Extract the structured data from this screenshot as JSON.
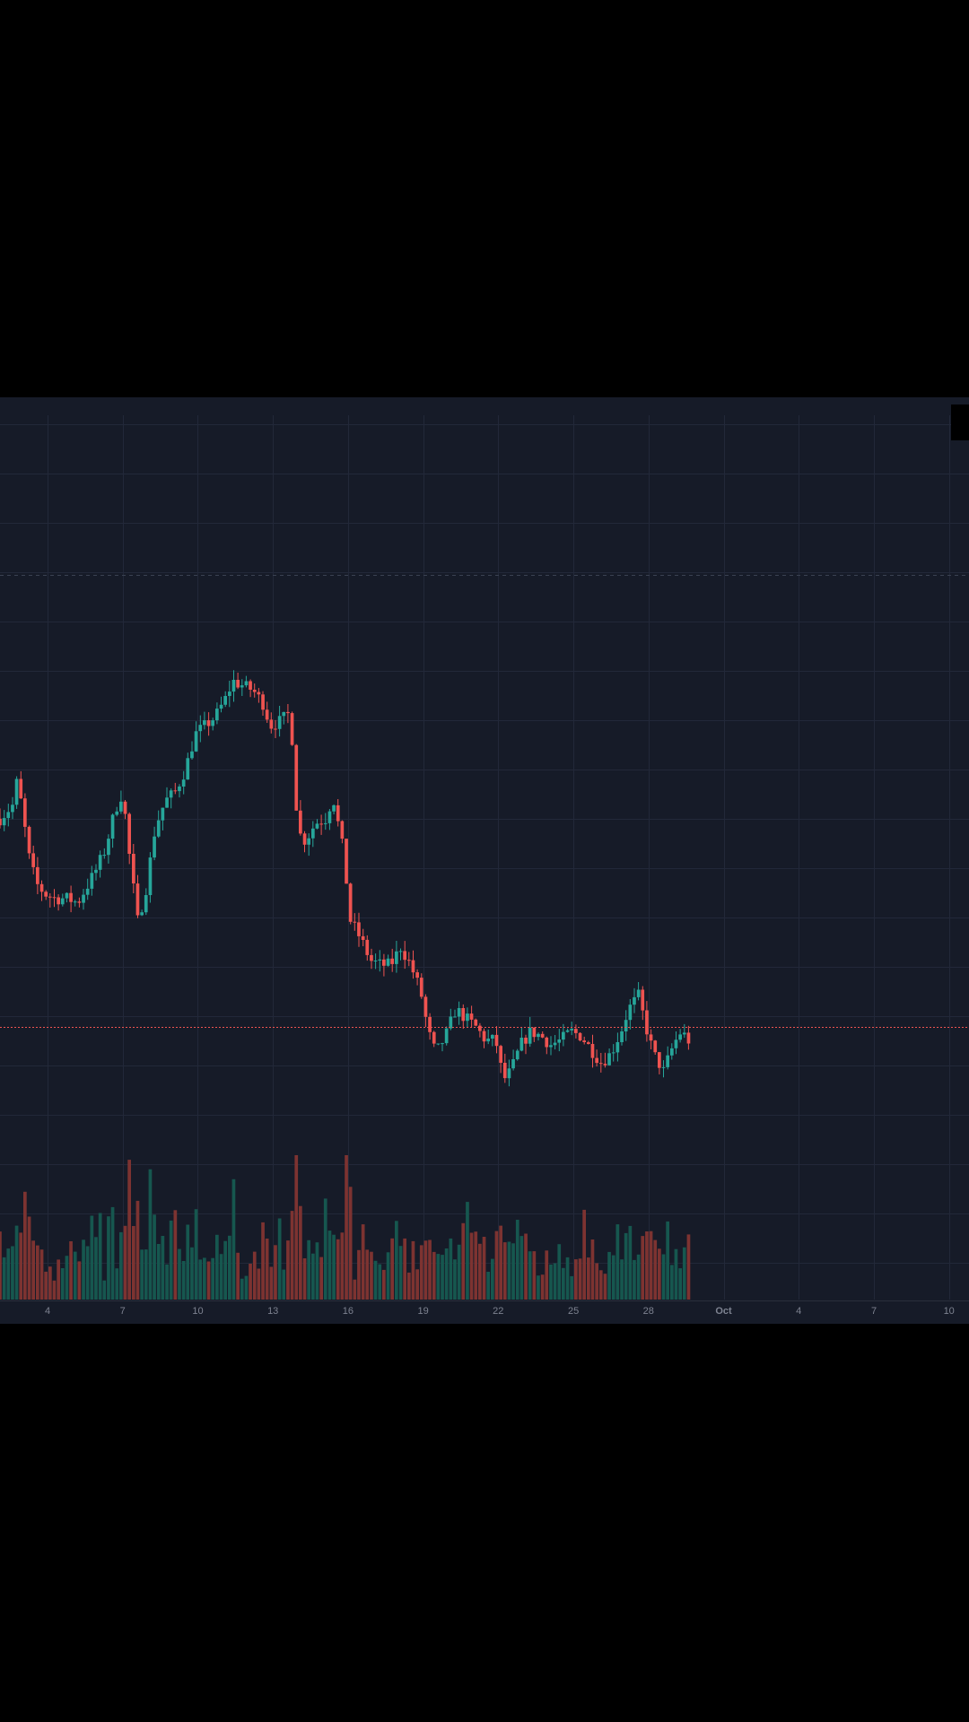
{
  "colors": {
    "background": "#000000",
    "chart_background": "#161b28",
    "grid": "#222839",
    "up": "#26a69a",
    "down": "#ef5350",
    "volume_up": "#16574f",
    "volume_down": "#7d3331",
    "last_price_line": "#ef5350",
    "dashed_line": "#3b4252",
    "axis_text": "#7d8290"
  },
  "chart_data": {
    "type": "candlestick",
    "title": "",
    "price_scale_labels": false,
    "x_axis_ticks": [
      {
        "label": "4",
        "day": 4
      },
      {
        "label": "7",
        "day": 7
      },
      {
        "label": "10",
        "day": 10
      },
      {
        "label": "13",
        "day": 13
      },
      {
        "label": "16",
        "day": 16
      },
      {
        "label": "19",
        "day": 19
      },
      {
        "label": "22",
        "day": 22
      },
      {
        "label": "25",
        "day": 25
      },
      {
        "label": "28",
        "day": 28
      },
      {
        "label": "Oct",
        "day": 31,
        "bold": true
      },
      {
        "label": "4",
        "day": 34
      },
      {
        "label": "7",
        "day": 37
      },
      {
        "label": "10",
        "day": 40
      }
    ],
    "x_range_days": [
      2.1,
      40.8
    ],
    "close_path": [
      [
        2.1,
        57
      ],
      [
        2.6,
        60
      ],
      [
        2.8,
        66
      ],
      [
        3.3,
        47
      ],
      [
        3.6,
        42
      ],
      [
        3.9,
        40
      ],
      [
        4.3,
        39
      ],
      [
        4.8,
        39
      ],
      [
        5.2,
        38
      ],
      [
        5.6,
        42
      ],
      [
        5.9,
        45
      ],
      [
        6.3,
        50
      ],
      [
        6.7,
        59
      ],
      [
        7.0,
        63
      ],
      [
        7.3,
        47
      ],
      [
        7.6,
        34
      ],
      [
        7.9,
        40
      ],
      [
        8.3,
        55
      ],
      [
        8.7,
        61
      ],
      [
        9.1,
        63
      ],
      [
        9.5,
        68
      ],
      [
        9.9,
        76
      ],
      [
        10.3,
        78
      ],
      [
        10.7,
        80
      ],
      [
        11.1,
        84
      ],
      [
        11.4,
        88
      ],
      [
        11.8,
        87
      ],
      [
        12.2,
        86
      ],
      [
        12.6,
        83
      ],
      [
        12.9,
        78
      ],
      [
        13.3,
        79
      ],
      [
        13.7,
        81
      ],
      [
        14.0,
        54
      ],
      [
        14.3,
        52
      ],
      [
        14.7,
        56
      ],
      [
        15.1,
        57
      ],
      [
        15.4,
        62
      ],
      [
        15.8,
        50
      ],
      [
        16.1,
        34
      ],
      [
        16.5,
        30
      ],
      [
        16.9,
        25
      ],
      [
        17.3,
        24
      ],
      [
        17.7,
        24
      ],
      [
        18.1,
        28
      ],
      [
        18.5,
        24
      ],
      [
        18.9,
        18
      ],
      [
        19.2,
        9
      ],
      [
        19.5,
        4
      ],
      [
        19.9,
        8
      ],
      [
        20.3,
        14
      ],
      [
        20.7,
        12
      ],
      [
        21.1,
        10
      ],
      [
        21.5,
        7
      ],
      [
        21.9,
        7
      ],
      [
        22.2,
        -2
      ],
      [
        22.5,
        0
      ],
      [
        22.9,
        6
      ],
      [
        23.3,
        9
      ],
      [
        23.7,
        8
      ],
      [
        24.1,
        6
      ],
      [
        24.5,
        7
      ],
      [
        24.9,
        9
      ],
      [
        25.3,
        8
      ],
      [
        25.7,
        5
      ],
      [
        26.1,
        2
      ],
      [
        26.5,
        4
      ],
      [
        26.9,
        9
      ],
      [
        27.2,
        14
      ],
      [
        27.6,
        17
      ],
      [
        27.9,
        10
      ],
      [
        28.2,
        4
      ],
      [
        28.6,
        0
      ],
      [
        29.0,
        6
      ],
      [
        29.3,
        9
      ],
      [
        29.6,
        7
      ]
    ],
    "last_price_level": 10,
    "dashed_reference_level": 112,
    "y_domain": [
      -26,
      148
    ],
    "volume_max": 100,
    "volume_seed": 7
  }
}
